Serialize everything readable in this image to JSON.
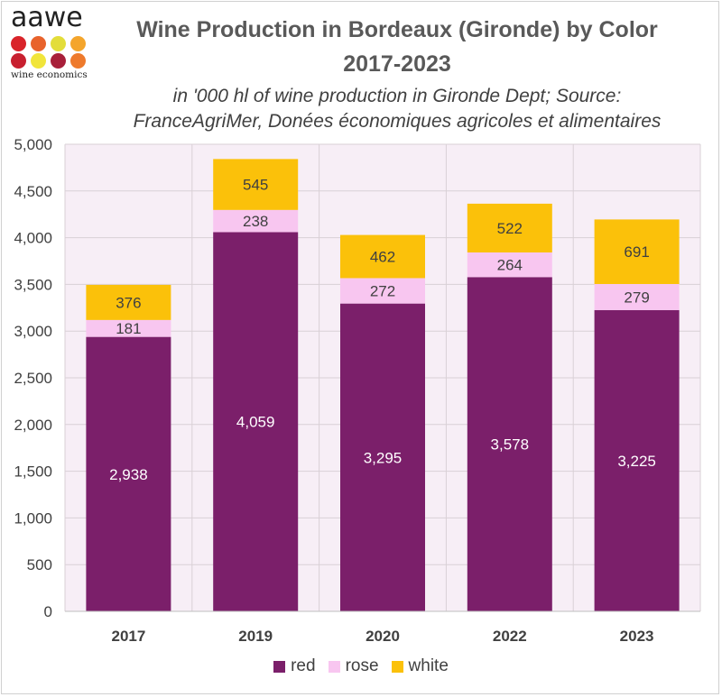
{
  "logo": {
    "word": "aawe",
    "tagline": "wine economics",
    "dot_colors": [
      "#d9242a",
      "#e8632c",
      "#e3dd3a",
      "#f4a52c",
      "#c8202f",
      "#f1e53a",
      "#a8203a",
      "#ee7a2c"
    ]
  },
  "chart_data": {
    "type": "bar",
    "stacked": true,
    "title": "Wine Production in Bordeaux (Gironde) by Color",
    "title_line2": "2017-2023",
    "subtitle_line1": "in '000 hl of wine production in Gironde Dept; Source:",
    "subtitle_line2": "FranceAgriMer, Donées économiques agricoles et alimentaires",
    "categories": [
      "2017",
      "2019",
      "2020",
      "2022",
      "2023"
    ],
    "series": [
      {
        "name": "red",
        "color": "#7b1f6a",
        "values": [
          2938,
          4059,
          3295,
          3578,
          3225
        ],
        "labels": [
          "2,938",
          "4,059",
          "3,295",
          "3,578",
          "3,225"
        ]
      },
      {
        "name": "rose",
        "color": "#f8c6f0",
        "values": [
          181,
          238,
          272,
          264,
          279
        ],
        "labels": [
          "181",
          "238",
          "272",
          "264",
          "279"
        ]
      },
      {
        "name": "white",
        "color": "#fbc10a",
        "values": [
          376,
          545,
          462,
          522,
          691
        ],
        "labels": [
          "376",
          "545",
          "462",
          "522",
          "691"
        ]
      }
    ],
    "ylim": [
      0,
      5000
    ],
    "yticks": [
      0,
      500,
      1000,
      1500,
      2000,
      2500,
      3000,
      3500,
      4000,
      4500,
      5000
    ],
    "ytick_labels": [
      "0",
      "500",
      "1,000",
      "1,500",
      "2,000",
      "2,500",
      "3,000",
      "3,500",
      "4,000",
      "4,500",
      "5,000"
    ],
    "plot_background": "#f7eef6",
    "grid": true,
    "legend_position": "bottom"
  }
}
